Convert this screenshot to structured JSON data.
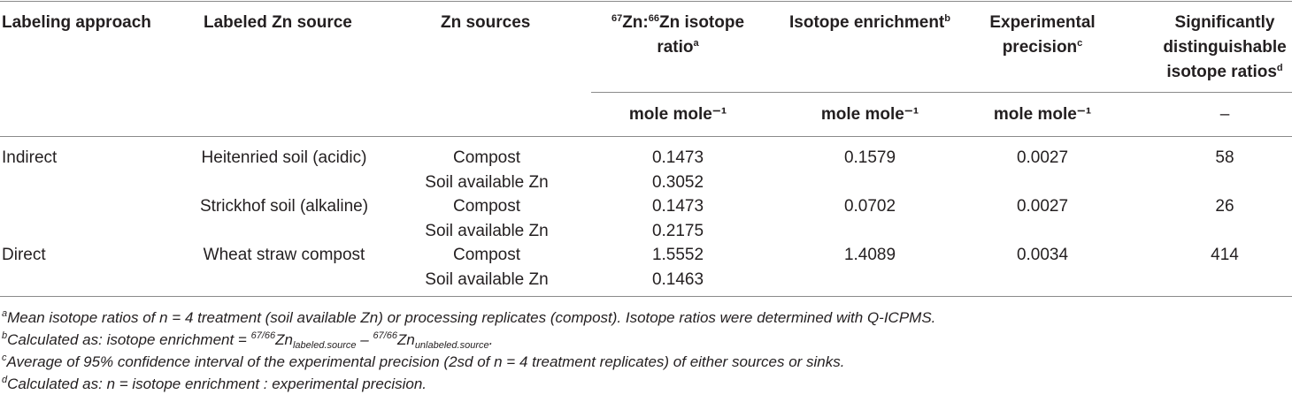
{
  "header": {
    "labeling_approach": "Labeling approach",
    "labeled_source": "Labeled Zn source",
    "zn_sources": "Zn sources",
    "ratio_p1_pre": "67",
    "ratio_p1_zn": "Zn:",
    "ratio_p1_pre2": "66",
    "ratio_p1_rest": "Zn isotope",
    "ratio_p2": "ratio",
    "ratio_sup": "a",
    "enrichment": "Isotope enrichment",
    "enrichment_sup": "b",
    "precision_l1": "Experimental",
    "precision_l2": "precision",
    "precision_sup": "c",
    "sig_l1": "Significantly",
    "sig_l2": "distinguishable",
    "sig_l3": "isotope ratios",
    "sig_sup": "d"
  },
  "units": {
    "ratio": "mole mole⁻¹",
    "enrichment": "mole mole⁻¹",
    "precision": "mole mole⁻¹",
    "sig": "–"
  },
  "rows": [
    {
      "approach": "Indirect",
      "labeled": "Heitenried soil (acidic)",
      "source": "Compost",
      "ratio": "0.1473",
      "enrichment": "0.1579",
      "precision": "0.0027",
      "sig": "58"
    },
    {
      "approach": "",
      "labeled": "",
      "source": "Soil available Zn",
      "ratio": "0.3052",
      "enrichment": "",
      "precision": "",
      "sig": ""
    },
    {
      "approach": "",
      "labeled": "Strickhof soil (alkaline)",
      "source": "Compost",
      "ratio": "0.1473",
      "enrichment": "0.0702",
      "precision": "0.0027",
      "sig": "26"
    },
    {
      "approach": "",
      "labeled": "",
      "source": "Soil available Zn",
      "ratio": "0.2175",
      "enrichment": "",
      "precision": "",
      "sig": ""
    },
    {
      "approach": "Direct",
      "labeled": "Wheat straw compost",
      "source": "Compost",
      "ratio": "1.5552",
      "enrichment": "1.4089",
      "precision": "0.0034",
      "sig": "414"
    },
    {
      "approach": "",
      "labeled": "",
      "source": "Soil available Zn",
      "ratio": "0.1463",
      "enrichment": "",
      "precision": "",
      "sig": ""
    }
  ],
  "footnotes": {
    "a_sup": "a",
    "a_text": "Mean isotope ratios of n = 4 treatment (soil available Zn) or processing replicates (compost). Isotope ratios were determined with Q-ICPMS.",
    "b_sup": "b",
    "b_text1": "Calculated as: isotope enrichment = ",
    "b_sup2": "67/66",
    "b_zn1": "Zn",
    "b_sub1": "labeled.source",
    "b_mid": " – ",
    "b_sup3": "67/66",
    "b_zn2": "Zn",
    "b_sub2": "unlabeled.source",
    "b_end": ".",
    "c_sup": "c",
    "c_text": "Average of 95% confidence interval of the experimental precision (2sd of n = 4 treatment replicates) of either sources or sinks.",
    "d_sup": "d",
    "d_text": "Calculated as: n = isotope enrichment : experimental precision."
  }
}
